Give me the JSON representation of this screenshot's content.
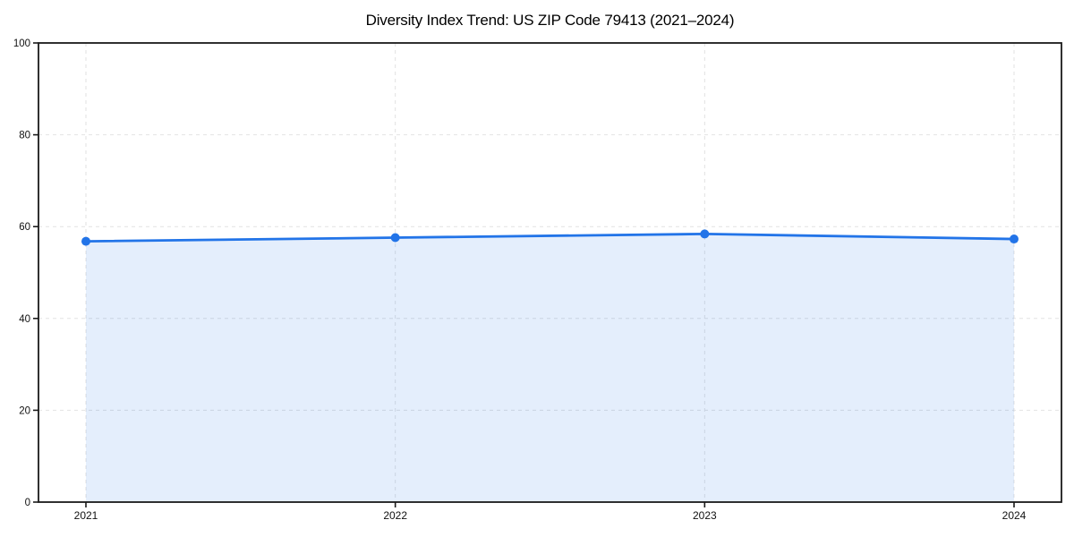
{
  "chart_data": {
    "type": "area",
    "title": "Diversity Index Trend: US ZIP Code 79413 (2021–2024)",
    "x": [
      2021,
      2022,
      2023,
      2024
    ],
    "series": [
      {
        "name": "Diversity Index",
        "values": [
          56.8,
          57.6,
          58.4,
          57.3
        ]
      }
    ],
    "xlabel": "",
    "ylabel": "",
    "ylim": [
      0,
      100
    ],
    "yticks": [
      0,
      20,
      40,
      60,
      80,
      100
    ],
    "xticks": [
      "2021",
      "2022",
      "2023",
      "2024"
    ],
    "grid": true,
    "grid_style": "dashed",
    "legend": false,
    "marker": "circle",
    "style": {
      "line_color": "#2274e8",
      "marker_color": "#2274e8",
      "fill_color": "rgba(34,116,232,0.12)",
      "grid_color": "#e2e2e2",
      "axis_color": "#1a1a1a",
      "tick_label_color": "#111111",
      "background": "#ffffff"
    }
  }
}
